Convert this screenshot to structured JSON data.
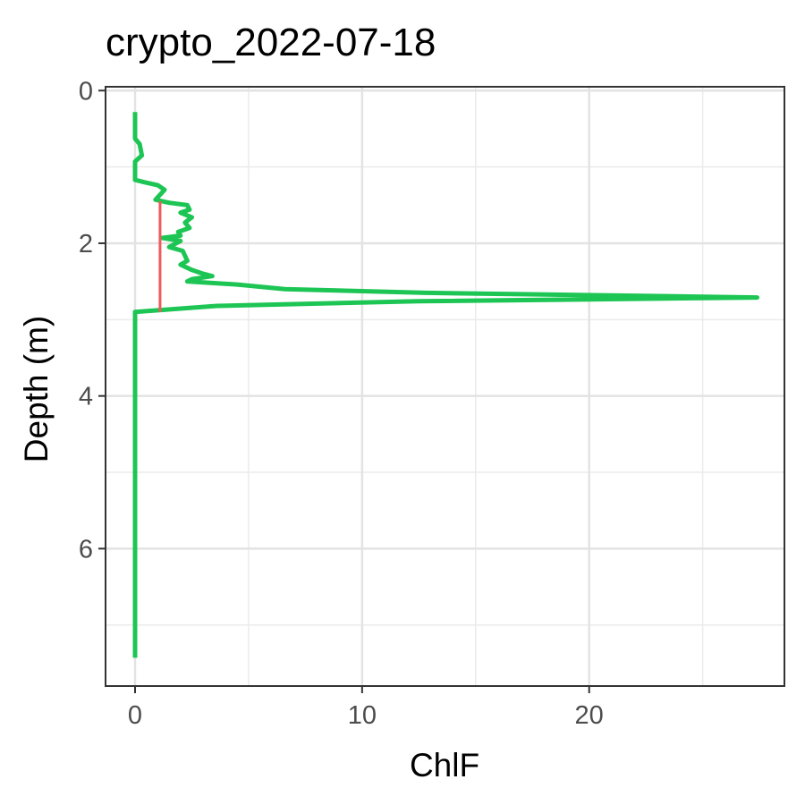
{
  "chart_data": {
    "type": "line",
    "title": "crypto_2022-07-18",
    "xlabel": "ChlF",
    "ylabel": "Depth (m)",
    "xlim": [
      -1.3,
      28.6
    ],
    "ylim": [
      7.8,
      -0.05
    ],
    "y_reversed": true,
    "x_ticks": [
      0,
      10,
      20
    ],
    "y_ticks": [
      0,
      2,
      4,
      6
    ],
    "grid": true,
    "legend": "none",
    "series": [
      {
        "color": "#1DC554",
        "points": [
          {
            "x": 0.0,
            "y": 0.28
          },
          {
            "x": 0.0,
            "y": 0.63
          },
          {
            "x": 0.2,
            "y": 0.7
          },
          {
            "x": 0.3,
            "y": 0.85
          },
          {
            "x": 0.0,
            "y": 0.93
          },
          {
            "x": 0.0,
            "y": 1.17
          },
          {
            "x": 0.4,
            "y": 1.2
          },
          {
            "x": 1.0,
            "y": 1.24
          },
          {
            "x": 1.3,
            "y": 1.3
          },
          {
            "x": 0.9,
            "y": 1.43
          },
          {
            "x": 1.5,
            "y": 1.47
          },
          {
            "x": 2.3,
            "y": 1.5
          },
          {
            "x": 2.4,
            "y": 1.56
          },
          {
            "x": 2.0,
            "y": 1.6
          },
          {
            "x": 2.5,
            "y": 1.66
          },
          {
            "x": 2.2,
            "y": 1.73
          },
          {
            "x": 2.4,
            "y": 1.8
          },
          {
            "x": 1.9,
            "y": 1.85
          },
          {
            "x": 2.0,
            "y": 1.9
          },
          {
            "x": 1.2,
            "y": 1.93
          },
          {
            "x": 2.0,
            "y": 1.97
          },
          {
            "x": 1.5,
            "y": 2.05
          },
          {
            "x": 2.1,
            "y": 2.1
          },
          {
            "x": 2.3,
            "y": 2.23
          },
          {
            "x": 2.0,
            "y": 2.28
          },
          {
            "x": 2.5,
            "y": 2.35
          },
          {
            "x": 3.0,
            "y": 2.4
          },
          {
            "x": 3.4,
            "y": 2.43
          },
          {
            "x": 2.5,
            "y": 2.47
          },
          {
            "x": 2.3,
            "y": 2.5
          },
          {
            "x": 4.5,
            "y": 2.54
          },
          {
            "x": 6.6,
            "y": 2.6
          },
          {
            "x": 12.8,
            "y": 2.65
          },
          {
            "x": 27.4,
            "y": 2.71
          },
          {
            "x": 12.5,
            "y": 2.76
          },
          {
            "x": 3.6,
            "y": 2.82
          },
          {
            "x": 0.0,
            "y": 2.9
          },
          {
            "x": 0.0,
            "y": 7.43
          }
        ]
      }
    ],
    "annotations": [
      {
        "type": "vertical_segment",
        "x": 1.1,
        "y_start": 1.45,
        "y_end": 2.9,
        "color": "#F05A5A"
      }
    ]
  }
}
